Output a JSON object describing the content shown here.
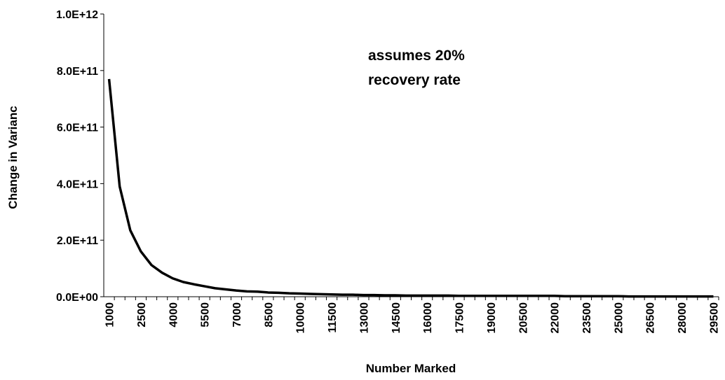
{
  "chart_data": {
    "type": "line",
    "x_label": "Number Marked",
    "y_label": "Change in Varianc",
    "annotation": [
      "assumes 20%",
      "recovery rate"
    ],
    "categories": [
      "1000",
      null,
      null,
      "2500",
      null,
      null,
      "4000",
      null,
      null,
      "5500",
      null,
      null,
      "7000",
      null,
      null,
      "8500",
      null,
      null,
      "10000",
      null,
      null,
      "11500",
      null,
      null,
      "13000",
      null,
      null,
      "14500",
      null,
      null,
      "16000",
      null,
      null,
      "17500",
      null,
      null,
      "19000",
      null,
      null,
      "20500",
      null,
      null,
      "22000",
      null,
      null,
      "23500",
      null,
      null,
      "25000",
      null,
      null,
      "26500",
      null,
      null,
      "28000",
      null,
      null,
      "29500"
    ],
    "series": [
      {
        "color": "#000000",
        "values": [
          770000000000.0,
          390000000000.0,
          235000000000.0,
          160000000000.0,
          112000000000.0,
          85000000000.0,
          65000000000.0,
          52000000000.0,
          44000000000.0,
          37000000000.0,
          30000000000.0,
          26000000000.0,
          22000000000.0,
          19000000000.0,
          18000000000.0,
          15000000000.0,
          14000000000.0,
          12000000000.0,
          11000000000.0,
          10000000000.0,
          9000000000.0,
          8000000000.0,
          7000000000.0,
          7000000000.0,
          6000000000.0,
          6000000000.0,
          5000000000.0,
          5000000000.0,
          4000000000.0,
          4000000000.0,
          4000000000.0,
          4000000000.0,
          4000000000.0,
          3000000000.0,
          3000000000.0,
          3000000000.0,
          3000000000.0,
          3000000000.0,
          3000000000.0,
          3000000000.0,
          3000000000.0,
          3000000000.0,
          3000000000.0,
          2000000000.0,
          2000000000.0,
          2000000000.0,
          2000000000.0,
          2000000000.0,
          2000000000.0,
          1000000000.0,
          1000000000.0,
          1000000000.0,
          1000000000.0,
          1000000000.0,
          1000000000.0,
          1000000000.0,
          1000000000.0,
          1000000000.0
        ]
      }
    ],
    "ylim": [
      0,
      1000000000000.0
    ],
    "yticks": [
      {
        "value": 0,
        "label": "0.0E+00"
      },
      {
        "value": 200000000000.0,
        "label": "2.0E+11"
      },
      {
        "value": 400000000000.0,
        "label": "4.0E+11"
      },
      {
        "value": 600000000000.0,
        "label": "6.0E+11"
      },
      {
        "value": 800000000000.0,
        "label": "8.0E+11"
      },
      {
        "value": 1000000000000.0,
        "label": "1.0E+12"
      }
    ],
    "grid": false
  }
}
